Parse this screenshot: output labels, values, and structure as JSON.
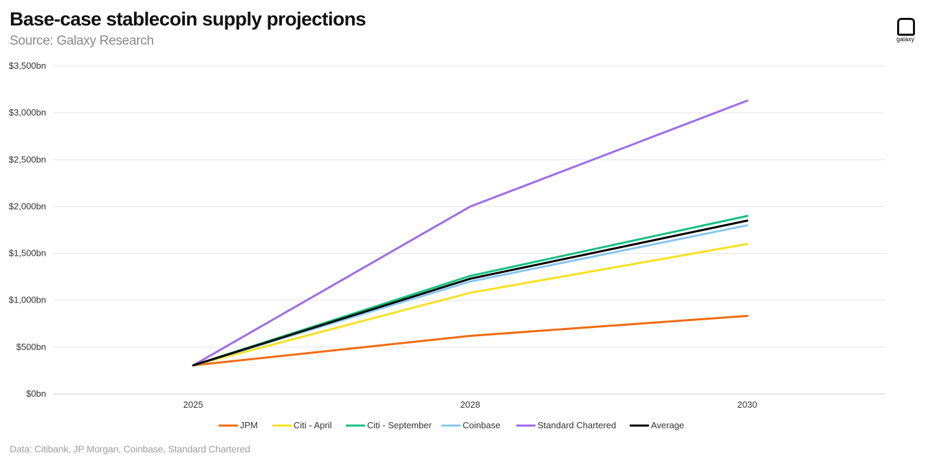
{
  "header": {
    "title": "Base-case stablecoin supply projections",
    "subtitle": "Source: Galaxy Research"
  },
  "footer": {
    "note": "Data: Citibank, JP Morgan, Coinbase, Standard Chartered"
  },
  "logo": {
    "text": "galaxy"
  },
  "chart_data": {
    "type": "line",
    "title": "Base-case stablecoin supply projections",
    "subtitle": "Source: Galaxy Research",
    "xlabel": "",
    "ylabel": "",
    "x": [
      "2025",
      "2028",
      "2030"
    ],
    "ylim": [
      0,
      3500
    ],
    "yticks": [
      0,
      500,
      1000,
      1500,
      2000,
      2500,
      3000,
      3500
    ],
    "ytick_labels": [
      "$0bn",
      "$500bn",
      "$1,000bn",
      "$1,500bn",
      "$2,000bn",
      "$2,500bn",
      "$3,000bn",
      "$3,500bn"
    ],
    "grid": "horizontal",
    "legend_position": "bottom",
    "series": [
      {
        "name": "JPM",
        "color": "#f26a0e",
        "values": [
          305,
          620,
          833
        ]
      },
      {
        "name": "Citi - April",
        "color": "#f7e11c",
        "values": [
          305,
          1080,
          1600
        ]
      },
      {
        "name": "Citi - September",
        "color": "#12c17f",
        "values": [
          305,
          1260,
          1900
        ]
      },
      {
        "name": "Coinbase",
        "color": "#86c6f0",
        "values": [
          305,
          1200,
          1800
        ]
      },
      {
        "name": "Standard Chartered",
        "color": "#9b6cf0",
        "values": [
          305,
          2000,
          3130
        ]
      },
      {
        "name": "Average",
        "color": "#000000",
        "values": [
          305,
          1230,
          1850
        ]
      }
    ]
  }
}
